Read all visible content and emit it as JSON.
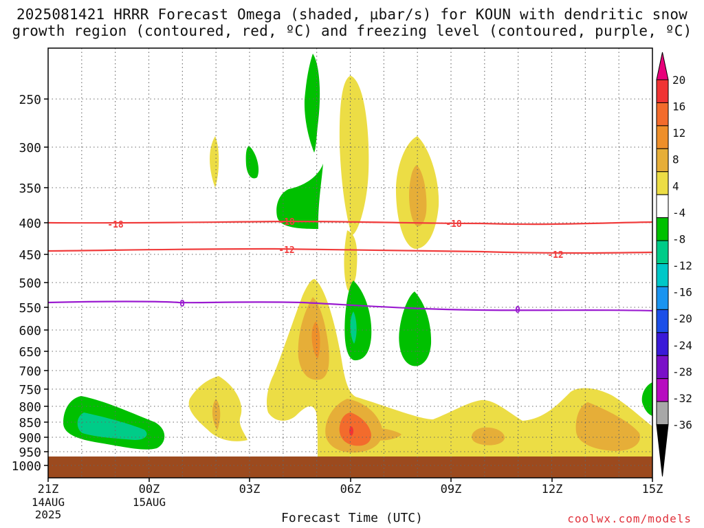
{
  "title_line1": "2025081421 HRRR Forecast Omega (shaded, µbar/s) for KOUN with dendritic snow",
  "title_line2": "growth region (contoured, red, ºC) and freezing level (contoured, purple, ºC)",
  "xlabel": "Forecast Time (UTC)",
  "credit": "coolwx.com/models",
  "chart_data": {
    "type": "contour",
    "x_ticks": [
      {
        "label": "21Z",
        "date1": "14AUG",
        "date2": "2025"
      },
      {
        "label": "00Z",
        "date1": "15AUG",
        "date2": ""
      },
      {
        "label": "03Z",
        "date1": "",
        "date2": ""
      },
      {
        "label": "06Z",
        "date1": "",
        "date2": ""
      },
      {
        "label": "09Z",
        "date1": "",
        "date2": ""
      },
      {
        "label": "12Z",
        "date1": "",
        "date2": ""
      },
      {
        "label": "15Z",
        "date1": "",
        "date2": ""
      }
    ],
    "y_ticks": [
      "250",
      "300",
      "350",
      "400",
      "450",
      "500",
      "550",
      "600",
      "650",
      "700",
      "750",
      "800",
      "850",
      "900",
      "950",
      "1000"
    ],
    "y_scale": "log-pressure",
    "colorbar": {
      "labels": [
        "20",
        "16",
        "12",
        "8",
        "4",
        "-4",
        "-8",
        "-12",
        "-16",
        "-20",
        "-24",
        "-28",
        "-32",
        "-36"
      ],
      "colors": [
        "#e8007a",
        "#f03434",
        "#f36b2c",
        "#ee8f2a",
        "#e6ae38",
        "#ecdd45",
        "#ffffff",
        "#00c000",
        "#00cc88",
        "#00c8c8",
        "#1a94f0",
        "#1c4fe8",
        "#3a1ad8",
        "#7a10c8",
        "#b70bc0",
        "#a8a8a8",
        "#000000"
      ]
    },
    "contours": [
      {
        "name": "dendritic growth",
        "color": "#f03c3c",
        "level_label": "-18",
        "pressure_hpa": 400
      },
      {
        "name": "dendritic growth",
        "color": "#f03c3c",
        "level_label": "-12",
        "pressure_hpa": 447
      },
      {
        "name": "freezing level",
        "color": "#9a1ad0",
        "level_label": "0",
        "pressure_hpa": 545
      }
    ],
    "ground_color": "#9c4a1e",
    "grid": "dotted"
  }
}
